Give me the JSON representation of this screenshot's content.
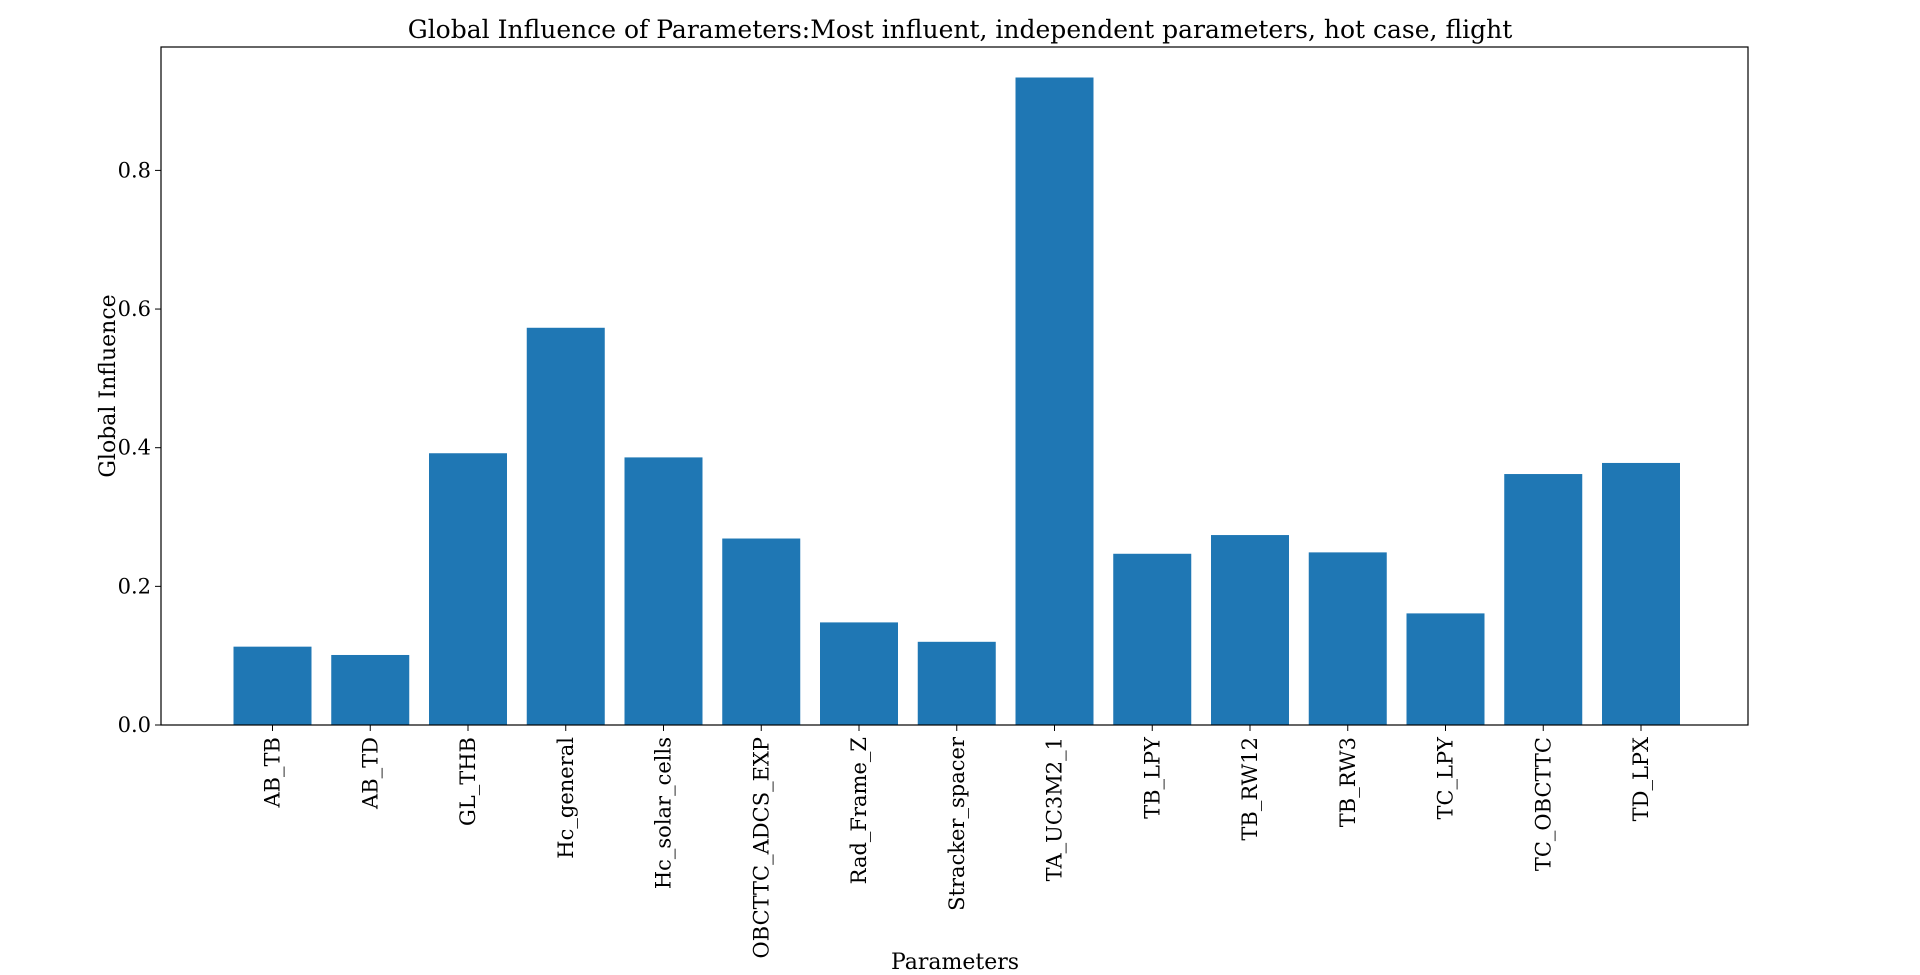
{
  "chart_data": {
    "type": "bar",
    "title": "Global Influence of Parameters:Most influent, independent parameters, hot case, flight",
    "xlabel": "Parameters",
    "ylabel": "Global Influence",
    "categories": [
      "AB_TB",
      "AB_TD",
      "GL_THB",
      "Hc_general",
      "Hc_solar_cells",
      "OBCTTC_ADCS_EXP",
      "Rad_Frame_Z",
      "Stracker_spacer",
      "TA_UC3M2_1",
      "TB_LPY",
      "TB_RW12",
      "TB_RW3",
      "TC_LPY",
      "TC_OBCTTC",
      "TD_LPX"
    ],
    "values": [
      0.113,
      0.101,
      0.392,
      0.573,
      0.386,
      0.269,
      0.148,
      0.12,
      0.934,
      0.247,
      0.274,
      0.249,
      0.161,
      0.362,
      0.378
    ],
    "ylim": [
      0,
      0.978
    ],
    "yticks": [
      0.0,
      0.2,
      0.4,
      0.6,
      0.8
    ],
    "ytick_labels": [
      "0.0",
      "0.2",
      "0.4",
      "0.6",
      "0.8"
    ],
    "grid": false,
    "bar_color": "#1f77b4"
  }
}
